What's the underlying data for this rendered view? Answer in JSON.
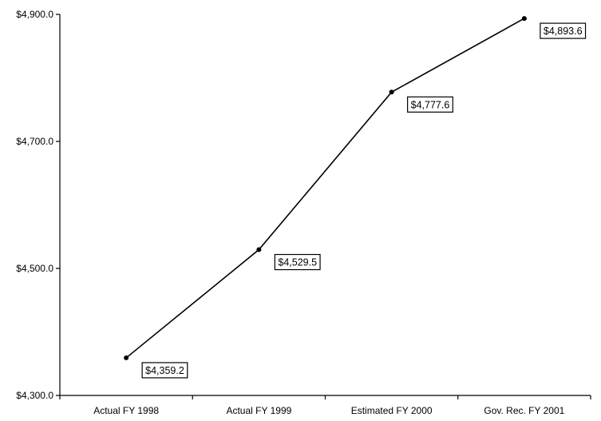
{
  "chart_data": {
    "type": "line",
    "title": "",
    "xlabel": "",
    "ylabel": "",
    "categories": [
      "Actual FY 1998",
      "Actual FY 1999",
      "Estimated FY 2000",
      "Gov. Rec. FY 2001"
    ],
    "series": [
      {
        "values": [
          4359.2,
          4529.5,
          4777.6,
          4893.6
        ]
      }
    ],
    "data_labels": [
      "$4,359.2",
      "$4,529.5",
      "$4,777.6",
      "$4,893.6"
    ],
    "ylim": [
      4300,
      4900
    ],
    "yticks": [
      4300,
      4500,
      4700,
      4900
    ],
    "ytick_labels": [
      "$4,300.0",
      "$4,500.0",
      "$4,700.0",
      "$4,900.0"
    ],
    "grid": false,
    "legend": "none",
    "colors": {
      "line": "#000000",
      "marker": "#000000",
      "label_border": "#000000"
    }
  }
}
